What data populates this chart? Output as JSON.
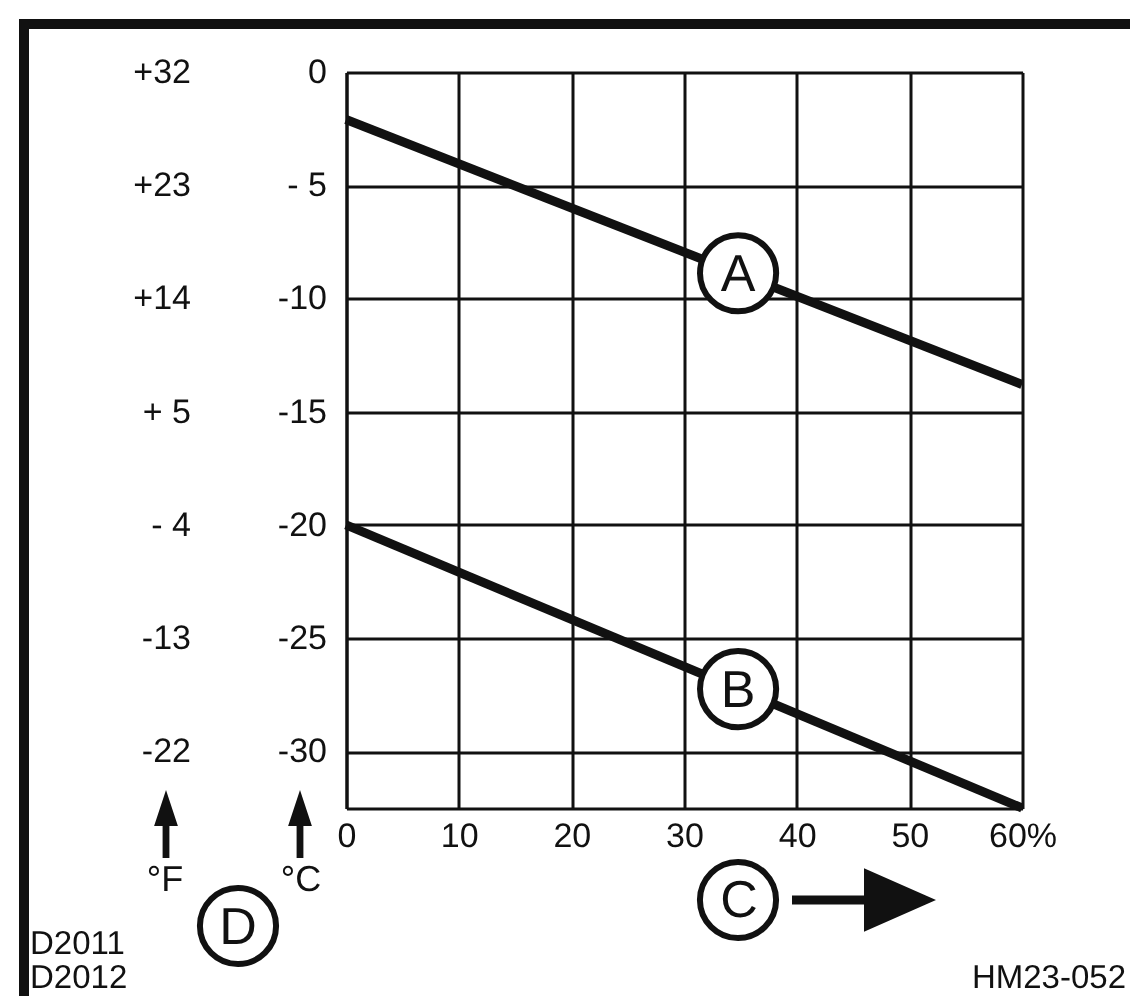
{
  "chart_data": {
    "type": "line",
    "xlabel": "C",
    "ylabel": "°C",
    "y2label": "°F",
    "x": [
      0,
      60
    ],
    "series": [
      {
        "name": "A",
        "color": "#111111",
        "values": [
          -2.1,
          -13.8
        ]
      },
      {
        "name": "B",
        "color": "#111111",
        "values": [
          -20,
          -32.5
        ]
      }
    ],
    "xlim": [
      0,
      60
    ],
    "xticks": [
      0,
      10,
      20,
      30,
      40,
      50,
      {
        "value": 60,
        "label": "60%"
      }
    ],
    "ylim": [
      -32.5,
      0
    ],
    "yticks": [
      0,
      {
        "value": -5,
        "label": "- 5"
      },
      -10,
      -15,
      -20,
      -25,
      -30
    ],
    "y2lim": [
      -26.5,
      32
    ],
    "y2ticks": [
      {
        "value": 32,
        "label": "+32"
      },
      {
        "value": 23,
        "label": "+23"
      },
      {
        "value": 14,
        "label": "+14"
      },
      {
        "value": 5,
        "label": "+ 5"
      },
      {
        "value": -4,
        "label": "- 4"
      },
      -13,
      -22
    ],
    "annotations": [
      "D",
      "D2011",
      "D2012",
      "HM23-052"
    ],
    "grid": true,
    "legend": false,
    "line_style": "solid"
  }
}
